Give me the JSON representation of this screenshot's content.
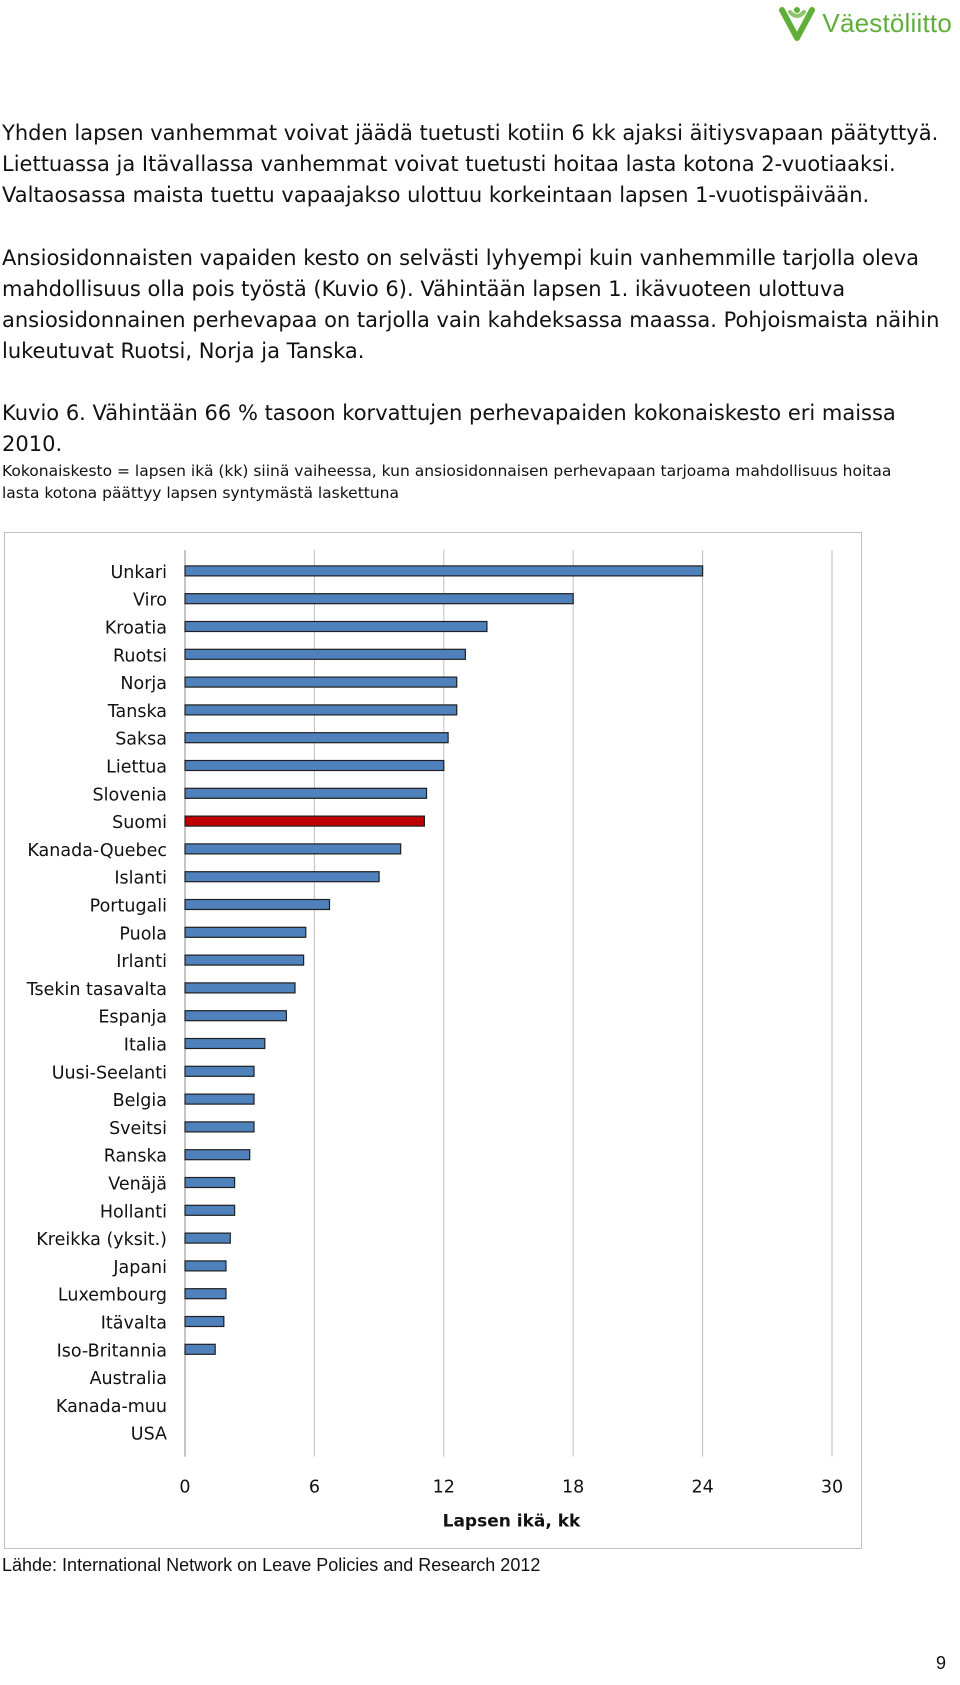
{
  "header": {
    "logo_text": "Väestöliitto",
    "logo_icon": "vaestoliitto-leaf-logo",
    "brand_color": "#5fae3a"
  },
  "paragraphs": [
    "Yhden lapsen vanhemmat voivat jäädä tuetusti kotiin 6 kk ajaksi äitiysvapaan päätyttyä. Liettuassa ja Itävallassa vanhemmat voivat tuetusti hoitaa lasta kotona 2-vuotiaaksi. Valtaosassa maista tuettu vapaajakso ulottuu korkeintaan lapsen 1-vuotispäivään.",
    "Ansiosidonnaisten vapaiden kesto on selvästi lyhyempi kuin vanhemmille tarjolla oleva mahdollisuus olla pois työstä (Kuvio 6). Vähintään lapsen 1. ikävuoteen ulottuva ansiosidonnainen perhevapaa on tarjolla vain kahdeksassa maassa. Pohjoismaista näihin lukeutuvat Ruotsi, Norja ja Tanska."
  ],
  "figure": {
    "caption": "Kuvio 6. Vähintään 66 % tasoon korvattujen perhevapaiden kokonaiskesto eri maissa 2010.",
    "subcaption": "Kokonaiskesto = lapsen ikä (kk) siinä vaiheessa, kun ansiosidonnaisen perhevapaan tarjoama mahdollisuus hoitaa lasta kotona päättyy lapsen syntymästä laskettuna",
    "source": "Lähde: International Network on Leave Policies and Research 2012"
  },
  "page_number": "9",
  "chart_data": {
    "type": "bar",
    "orientation": "horizontal",
    "title": "",
    "xlabel": "Lapsen ikä, kk",
    "ylabel": "",
    "xlim": [
      0,
      30
    ],
    "xticks": [
      0,
      6,
      12,
      18,
      24,
      30
    ],
    "grid": true,
    "legend": "none",
    "bar_color": "#4f81bd",
    "highlight_color": "#c00000",
    "highlight_category": "Suomi",
    "categories": [
      "Unkari",
      "Viro",
      "Kroatia",
      "Ruotsi",
      "Norja",
      "Tanska",
      "Saksa",
      "Liettua",
      "Slovenia",
      "Suomi",
      "Kanada-Quebec",
      "Islanti",
      "Portugali",
      "Puola",
      "Irlanti",
      "Tsekin tasavalta",
      "Espanja",
      "Italia",
      "Uusi-Seelanti",
      "Belgia",
      "Sveitsi",
      "Ranska",
      "Venäjä",
      "Hollanti",
      "Kreikka (yksit.)",
      "Japani",
      "Luxembourg",
      "Itävalta",
      "Iso-Britannia",
      "Australia",
      "Kanada-muu",
      "USA"
    ],
    "values": [
      24,
      18,
      14,
      13,
      12.6,
      12.6,
      12.2,
      12,
      11.2,
      11.1,
      10,
      9,
      6.7,
      5.6,
      5.5,
      5.1,
      4.7,
      3.7,
      3.2,
      3.2,
      3.2,
      3,
      2.3,
      2.3,
      2.1,
      1.9,
      1.9,
      1.8,
      1.4,
      0,
      0,
      0
    ]
  }
}
